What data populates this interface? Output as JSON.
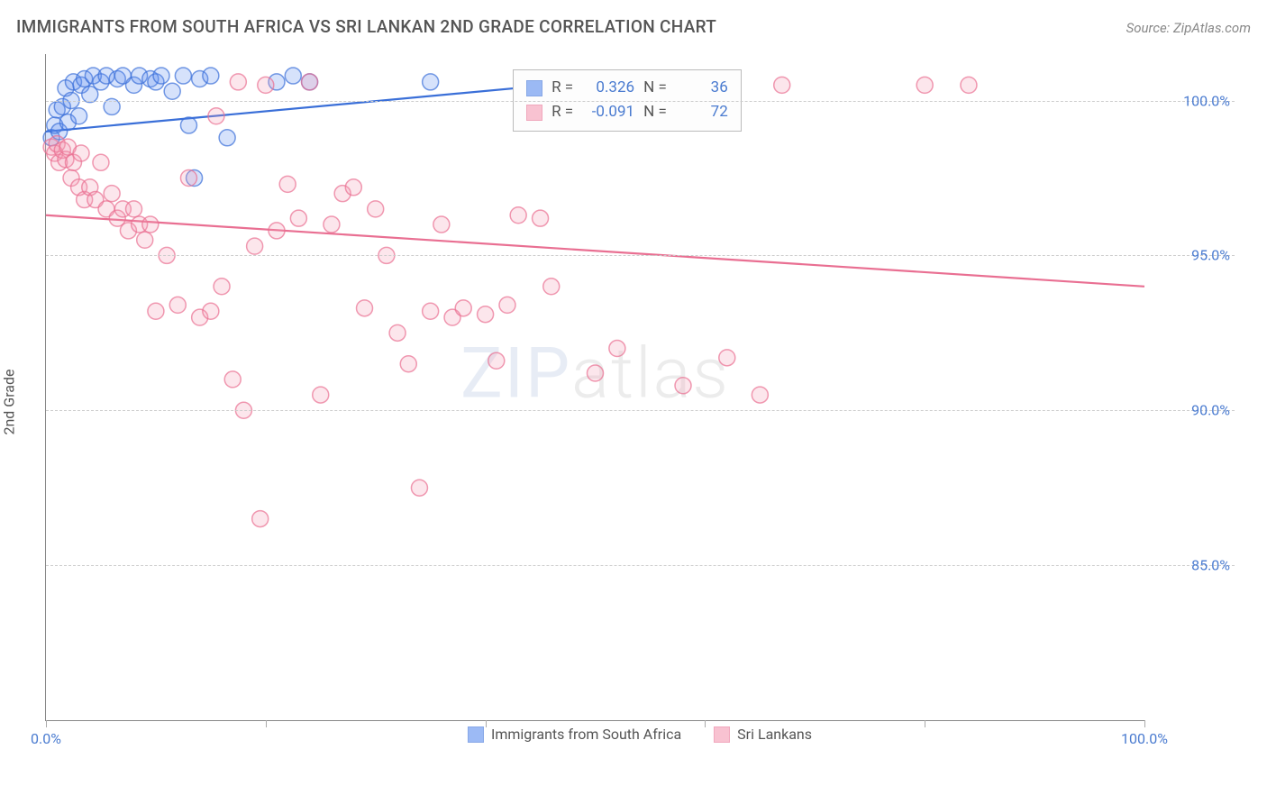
{
  "title": "IMMIGRANTS FROM SOUTH AFRICA VS SRI LANKAN 2ND GRADE CORRELATION CHART",
  "source": "Source: ZipAtlas.com",
  "y_axis_label": "2nd Grade",
  "watermark_a": "ZIP",
  "watermark_b": "atlas",
  "chart": {
    "type": "scatter",
    "xlim": [
      0,
      100
    ],
    "ylim": [
      80,
      101.5
    ],
    "x_ticks": [
      0,
      20,
      40,
      60,
      80,
      100
    ],
    "x_tick_labels_shown": {
      "0": "0.0%",
      "100": "100.0%"
    },
    "y_ticks": [
      85,
      90,
      95,
      100
    ],
    "y_tick_labels": {
      "85": "85.0%",
      "90": "90.0%",
      "95": "95.0%",
      "100": "100.0%"
    },
    "background_color": "#ffffff",
    "grid_color": "#cccccc",
    "axis_color": "#888888",
    "label_color": "#4a7bd0",
    "marker_radius": 9,
    "marker_fill_opacity": 0.25,
    "marker_stroke_width": 1.5,
    "series": [
      {
        "id": "south_africa",
        "label": "Immigrants from South Africa",
        "color": "#5b8def",
        "stroke": "#3a6fd8",
        "R": "0.326",
        "N": "36",
        "trend": {
          "x1": 0,
          "y1": 99.0,
          "x2": 55,
          "y2": 100.8,
          "width": 2.2
        },
        "points": [
          [
            0.5,
            98.8
          ],
          [
            0.8,
            99.2
          ],
          [
            1.0,
            99.7
          ],
          [
            1.2,
            99.0
          ],
          [
            1.5,
            99.8
          ],
          [
            1.8,
            100.4
          ],
          [
            2.0,
            99.3
          ],
          [
            2.3,
            100.0
          ],
          [
            2.5,
            100.6
          ],
          [
            3.0,
            99.5
          ],
          [
            3.2,
            100.5
          ],
          [
            3.5,
            100.7
          ],
          [
            4.0,
            100.2
          ],
          [
            4.3,
            100.8
          ],
          [
            5.0,
            100.6
          ],
          [
            5.5,
            100.8
          ],
          [
            6.0,
            99.8
          ],
          [
            6.5,
            100.7
          ],
          [
            7.0,
            100.8
          ],
          [
            8.0,
            100.5
          ],
          [
            8.5,
            100.8
          ],
          [
            9.5,
            100.7
          ],
          [
            10.0,
            100.6
          ],
          [
            10.5,
            100.8
          ],
          [
            11.5,
            100.3
          ],
          [
            12.5,
            100.8
          ],
          [
            13.0,
            99.2
          ],
          [
            14.0,
            100.7
          ],
          [
            15.0,
            100.8
          ],
          [
            13.5,
            97.5
          ],
          [
            16.5,
            98.8
          ],
          [
            21.0,
            100.6
          ],
          [
            22.5,
            100.8
          ],
          [
            24.0,
            100.6
          ],
          [
            35.0,
            100.6
          ],
          [
            54.0,
            100.7
          ]
        ]
      },
      {
        "id": "sri_lankans",
        "label": "Sri Lankans",
        "color": "#f59bb4",
        "stroke": "#e96f92",
        "R": "-0.091",
        "N": "72",
        "trend": {
          "x1": 0,
          "y1": 96.3,
          "x2": 100,
          "y2": 94.0,
          "width": 2.2
        },
        "points": [
          [
            0.5,
            98.5
          ],
          [
            0.8,
            98.3
          ],
          [
            1.0,
            98.6
          ],
          [
            1.2,
            98.0
          ],
          [
            1.5,
            98.4
          ],
          [
            1.8,
            98.1
          ],
          [
            2.0,
            98.5
          ],
          [
            2.3,
            97.5
          ],
          [
            2.5,
            98.0
          ],
          [
            3.0,
            97.2
          ],
          [
            3.2,
            98.3
          ],
          [
            3.5,
            96.8
          ],
          [
            4.0,
            97.2
          ],
          [
            4.5,
            96.8
          ],
          [
            5.0,
            98.0
          ],
          [
            5.5,
            96.5
          ],
          [
            6.0,
            97.0
          ],
          [
            6.5,
            96.2
          ],
          [
            7.0,
            96.5
          ],
          [
            7.5,
            95.8
          ],
          [
            8.0,
            96.5
          ],
          [
            8.5,
            96.0
          ],
          [
            9.0,
            95.5
          ],
          [
            9.5,
            96.0
          ],
          [
            10.0,
            93.2
          ],
          [
            11.0,
            95.0
          ],
          [
            12.0,
            93.4
          ],
          [
            13.0,
            97.5
          ],
          [
            14.0,
            93.0
          ],
          [
            15.0,
            93.2
          ],
          [
            15.5,
            99.5
          ],
          [
            16.0,
            94.0
          ],
          [
            17.0,
            91.0
          ],
          [
            17.5,
            100.6
          ],
          [
            18.0,
            90.0
          ],
          [
            19.0,
            95.3
          ],
          [
            19.5,
            86.5
          ],
          [
            20.0,
            100.5
          ],
          [
            21.0,
            95.8
          ],
          [
            22.0,
            97.3
          ],
          [
            23.0,
            96.2
          ],
          [
            24.0,
            100.6
          ],
          [
            25.0,
            90.5
          ],
          [
            26.0,
            96.0
          ],
          [
            27.0,
            97.0
          ],
          [
            28.0,
            97.2
          ],
          [
            29.0,
            93.3
          ],
          [
            30.0,
            96.5
          ],
          [
            31.0,
            95.0
          ],
          [
            32.0,
            92.5
          ],
          [
            33.0,
            91.5
          ],
          [
            34.0,
            87.5
          ],
          [
            35.0,
            93.2
          ],
          [
            36.0,
            96.0
          ],
          [
            37.0,
            93.0
          ],
          [
            38.0,
            93.3
          ],
          [
            40.0,
            93.1
          ],
          [
            41.0,
            91.6
          ],
          [
            42.0,
            93.4
          ],
          [
            43.0,
            96.3
          ],
          [
            45.0,
            96.2
          ],
          [
            46.0,
            94.0
          ],
          [
            48.0,
            100.5
          ],
          [
            50.0,
            91.2
          ],
          [
            52.0,
            92.0
          ],
          [
            54.0,
            100.5
          ],
          [
            58.0,
            90.8
          ],
          [
            62.0,
            91.7
          ],
          [
            65.0,
            90.5
          ],
          [
            67.0,
            100.5
          ],
          [
            80.0,
            100.5
          ],
          [
            84.0,
            100.5
          ]
        ]
      }
    ]
  },
  "stats_box": {
    "left_pct": 42.5,
    "top_y": 101.0,
    "rows": [
      {
        "swatch": "#5b8def",
        "stroke": "#3a6fd8",
        "r_label": "R =",
        "r_val": "0.326",
        "n_label": "N =",
        "n_val": "36",
        "val_color": "#4a7bd0"
      },
      {
        "swatch": "#f59bb4",
        "stroke": "#e96f92",
        "r_label": "R =",
        "r_val": "-0.091",
        "n_label": "N =",
        "n_val": "72",
        "val_color": "#4a7bd0"
      }
    ]
  }
}
